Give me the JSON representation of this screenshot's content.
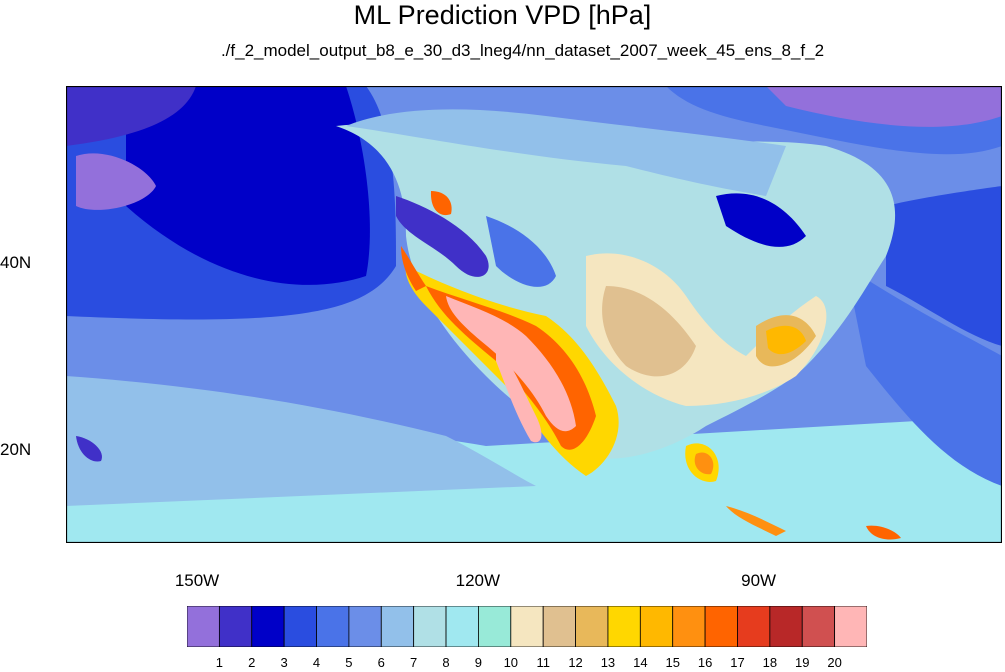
{
  "title": "ML Prediction VPD [hPa]",
  "subtitle": "./f_2_model_output_b8_e_30_d3_lneg4/nn_dataset_2007_week_45_ens_8_f_2",
  "map": {
    "lon_range": [
      -164,
      -64
    ],
    "lat_range": [
      10,
      59
    ],
    "lat_labels": [
      {
        "lat": 40,
        "label": "40N"
      },
      {
        "lat": 20,
        "label": "20N"
      }
    ],
    "lon_labels": [
      {
        "lon": -150,
        "label": "150W"
      },
      {
        "lon": -120,
        "label": "120W"
      },
      {
        "lon": -90,
        "label": "90W"
      }
    ]
  },
  "colorbar": {
    "colors": [
      "#9370db",
      "#4030c8",
      "#0000c8",
      "#2a4de0",
      "#4a73e8",
      "#6b8ee8",
      "#92c0ea",
      "#b0e0e6",
      "#a0e8f0",
      "#98ead8",
      "#f5e6c0",
      "#e0c090",
      "#e8b85a",
      "#ffd700",
      "#ffb800",
      "#ff9010",
      "#ff6400",
      "#e63c1e",
      "#b82828",
      "#d05050",
      "#ffb6b6"
    ],
    "labels": [
      "1",
      "2",
      "3",
      "4",
      "5",
      "6",
      "7",
      "8",
      "9",
      "10",
      "11",
      "12",
      "13",
      "14",
      "15",
      "16",
      "17",
      "18",
      "19",
      "20"
    ]
  }
}
